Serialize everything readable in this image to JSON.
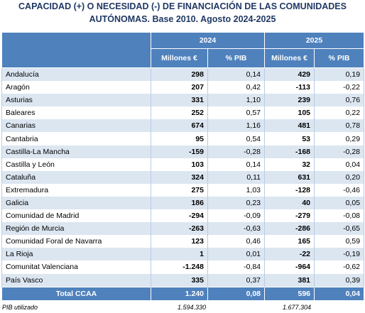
{
  "title": [
    "CAPACIDAD (+) O NECESIDAD (-) DE FINANCIACIÓN DE LAS COMUNIDADES",
    "AUTÓNOMAS. Base 2010. Agosto 2024-2025"
  ],
  "table": {
    "years": [
      "2024",
      "2025"
    ],
    "columns": [
      "Millones €",
      "% PIB",
      "Millones €",
      "% PIB"
    ],
    "rows": [
      [
        "Andalucía",
        "298",
        "0,14",
        "429",
        "0,19"
      ],
      [
        "Aragón",
        "207",
        "0,42",
        "-113",
        "-0,22"
      ],
      [
        "Asturias",
        "331",
        "1,10",
        "239",
        "0,76"
      ],
      [
        "Baleares",
        "252",
        "0,57",
        "105",
        "0,22"
      ],
      [
        "Canarias",
        "674",
        "1,16",
        "481",
        "0,78"
      ],
      [
        "Cantabria",
        "95",
        "0,54",
        "53",
        "0,29"
      ],
      [
        "Castilla-La Mancha",
        "-159",
        "-0,28",
        "-168",
        "-0,28"
      ],
      [
        "Castilla y León",
        "103",
        "0,14",
        "32",
        "0,04"
      ],
      [
        "Cataluña",
        "324",
        "0,11",
        "631",
        "0,20"
      ],
      [
        "Extremadura",
        "275",
        "1,03",
        "-128",
        "-0,46"
      ],
      [
        "Galicia",
        "186",
        "0,23",
        "40",
        "0,05"
      ],
      [
        "Comunidad de Madrid",
        "-294",
        "-0,09",
        "-279",
        "-0,08"
      ],
      [
        "Región de Murcia",
        "-263",
        "-0,63",
        "-286",
        "-0,65"
      ],
      [
        "Comunidad Foral de Navarra",
        "123",
        "0,46",
        "165",
        "0,59"
      ],
      [
        "La Rioja",
        "1",
        "0,01",
        "-22",
        "-0,19"
      ],
      [
        "Comunitat Valenciana",
        "-1.248",
        "-0,84",
        "-964",
        "-0,62"
      ],
      [
        "País Vasco",
        "335",
        "0,37",
        "381",
        "0,39"
      ]
    ],
    "total": [
      "Total CCAA",
      "1.240",
      "0,08",
      "596",
      "0,04"
    ]
  },
  "footer": {
    "label": "PIB utilizado",
    "values": [
      "1.594.330",
      "1.677.304"
    ]
  }
}
